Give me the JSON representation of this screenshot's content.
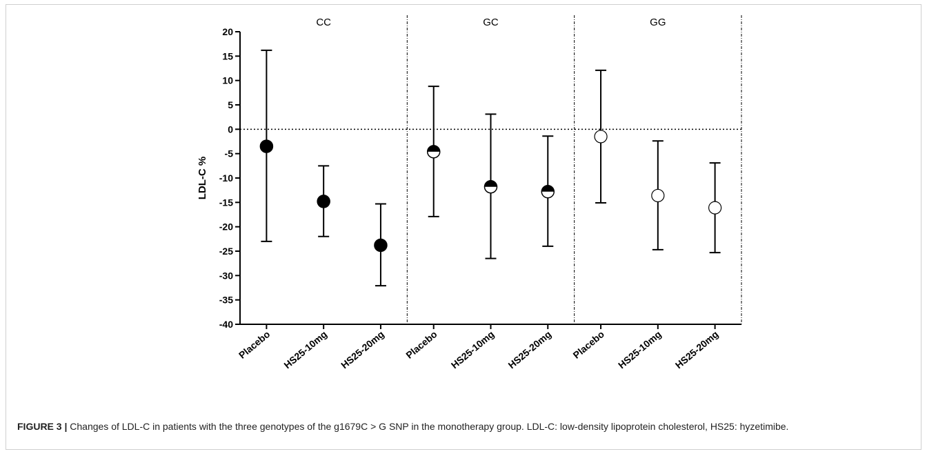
{
  "caption": {
    "label": "FIGURE 3 |",
    "text": " Changes of LDL-C in patients with the three genotypes of the g1679C > G SNP in the monotherapy group. LDL-C: low-density lipoprotein cholesterol, HS25: hyzetimibe."
  },
  "chart_data": {
    "type": "scatter",
    "ylabel": "LDL-C %",
    "ylim": [
      -40,
      20
    ],
    "yticks": [
      20,
      15,
      10,
      5,
      0,
      -5,
      -10,
      -15,
      -20,
      -25,
      -30,
      -35,
      -40
    ],
    "reference_line": 0,
    "groups": [
      {
        "label": "CC",
        "marker": "filled",
        "points": [
          {
            "category": "Placebo",
            "mean": -3.5,
            "upper": 16.2,
            "lower": -23.0
          },
          {
            "category": "HS25-10mg",
            "mean": -14.8,
            "upper": -7.5,
            "lower": -22.0
          },
          {
            "category": "HS25-20mg",
            "mean": -23.8,
            "upper": -15.3,
            "lower": -32.1
          }
        ]
      },
      {
        "label": "GC",
        "marker": "half-filled",
        "points": [
          {
            "category": "Placebo",
            "mean": -4.6,
            "upper": 8.8,
            "lower": -17.9
          },
          {
            "category": "HS25-10mg",
            "mean": -11.8,
            "upper": 3.1,
            "lower": -26.5
          },
          {
            "category": "HS25-20mg",
            "mean": -12.8,
            "upper": -1.4,
            "lower": -24.0
          }
        ]
      },
      {
        "label": "GG",
        "marker": "open",
        "points": [
          {
            "category": "Placebo",
            "mean": -1.5,
            "upper": 12.1,
            "lower": -15.1
          },
          {
            "category": "HS25-10mg",
            "mean": -13.6,
            "upper": -2.4,
            "lower": -24.7
          },
          {
            "category": "HS25-20mg",
            "mean": -16.1,
            "upper": -6.9,
            "lower": -25.3
          }
        ]
      }
    ],
    "grid": false
  }
}
